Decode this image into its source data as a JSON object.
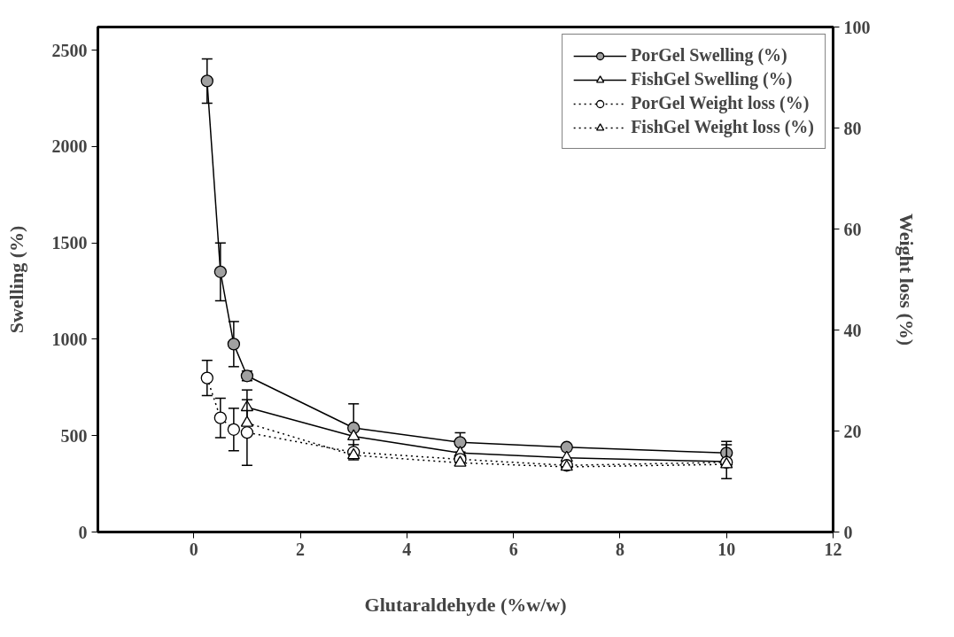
{
  "chart_data": {
    "type": "line",
    "xlabel": "Glutaraldehyde (%w/w)",
    "ylabel": "Swelling (%)",
    "y2label": "Weight loss (%)",
    "xlim": [
      -1.8,
      12
    ],
    "xticks": [
      0,
      2,
      4,
      6,
      8,
      10,
      12
    ],
    "ylim": [
      0,
      2620
    ],
    "yticks": [
      0,
      500,
      1000,
      1500,
      2000,
      2500
    ],
    "y2lim": [
      0,
      100
    ],
    "y2ticks": [
      0,
      20,
      40,
      60,
      80,
      100
    ],
    "grid": false,
    "legend": "top right",
    "series": [
      {
        "name": "PorGel Swelling (%)",
        "color": "#a0a0a0",
        "marker": "circle",
        "line_style": "solid",
        "x": [
          0.25,
          0.5,
          0.75,
          1,
          3,
          5,
          7,
          10
        ],
        "values": [
          2340,
          1350,
          975,
          810,
          540,
          465,
          440,
          410
        ],
        "errors": [
          115,
          150,
          117,
          25,
          125,
          50,
          null,
          60
        ]
      },
      {
        "name": "FishGel Swelling (%)",
        "color": "#ffffff",
        "marker": "triangle",
        "line_style": "solid",
        "x": [
          1,
          3,
          5,
          7,
          10
        ],
        "values": [
          647,
          496,
          410,
          385,
          365
        ],
        "errors": [
          90,
          null,
          null,
          null,
          88
        ]
      },
      {
        "name": "PorGel Weight loss (%)",
        "color": "#ffffff",
        "marker": "circle",
        "line_style": "dotted",
        "axis": "y2",
        "x": [
          0.25,
          0.5,
          0.75,
          1,
          3,
          5,
          7,
          10
        ],
        "values": [
          30.5,
          22.6,
          20.3,
          19.7,
          15.8,
          14.4,
          13.2,
          13.8
        ],
        "errors": [
          3.5,
          3.9,
          4.2,
          6.5,
          1.5,
          null,
          null,
          null
        ]
      },
      {
        "name": "FishGel Weight loss (%)",
        "color": "#ffffff",
        "marker": "triangle",
        "line_style": "dotted",
        "axis": "y2",
        "x": [
          1,
          3,
          5,
          7,
          10
        ],
        "values": [
          21.6,
          15.2,
          13.7,
          12.9,
          13.4
        ],
        "errors": [
          null,
          null,
          null,
          null,
          null
        ]
      }
    ]
  }
}
